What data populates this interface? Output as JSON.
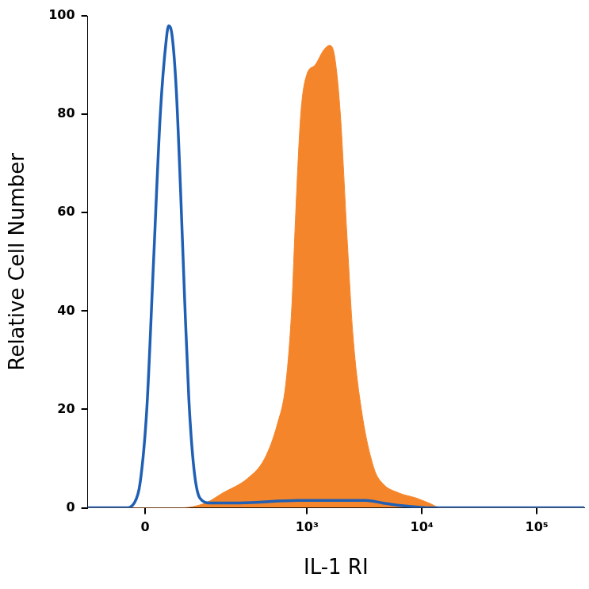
{
  "chart_data": {
    "type": "line",
    "x_label": "IL-1 RI",
    "y_label": "Relative Cell Number",
    "log": "x",
    "grid": false,
    "xlim": [
      -111,
      258800
    ],
    "xticks": [
      0,
      {
        "value": 1000,
        "label": "10³"
      },
      {
        "value": 10000,
        "label": "10⁴"
      },
      {
        "value": 100000,
        "label": "10⁵"
      }
    ],
    "ylim": [
      0,
      100
    ],
    "yticks": [
      0,
      20,
      40,
      60,
      80,
      100
    ],
    "series": [
      {
        "type": "line",
        "color": "#1f5fb4",
        "x": [
          -111,
          -31,
          -17,
          -7.9,
          2.6,
          13.2,
          24.1,
          33.9,
          38.2,
          44.2,
          51.9,
          60,
          68.6,
          77.5,
          89,
          103.7,
          132.6,
          252,
          838,
          3237,
          4532,
          6334,
          12466,
          258800
        ],
        "values": [
          0,
          0,
          1,
          5,
          20,
          50,
          80,
          95,
          98,
          96,
          85,
          65,
          42,
          22,
          8,
          2,
          1,
          1,
          1.5,
          1.5,
          1,
          0.5,
          0,
          0
        ]
      },
      {
        "type": "area",
        "color": "#f5852a",
        "x": [
          -111,
          60,
          120,
          176,
          300,
          424,
          549,
          650,
          732,
          796,
          881,
          992,
          1175,
          1391,
          1567,
          1732,
          1950,
          2231,
          2512,
          2972,
          3830,
          4532,
          6334,
          8892,
          11450,
          14740,
          258800
        ],
        "values": [
          0,
          0,
          1,
          3,
          6,
          10,
          17,
          25,
          40,
          60,
          80,
          88,
          90,
          93,
          94,
          92,
          80,
          55,
          35,
          20,
          8,
          5,
          3,
          2,
          1,
          0,
          0
        ]
      }
    ]
  }
}
